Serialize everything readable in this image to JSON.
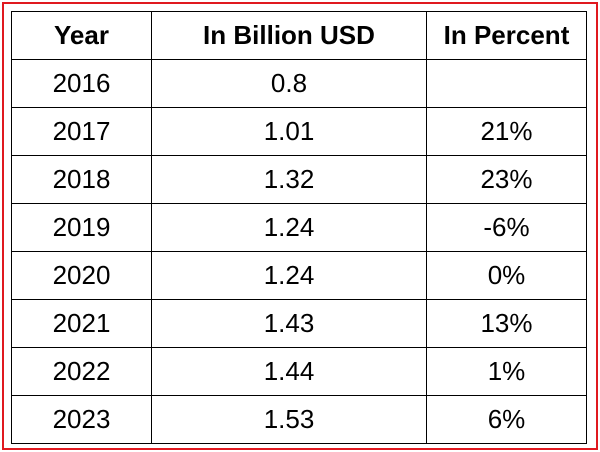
{
  "chart_data": {
    "type": "table",
    "columns": [
      "Year",
      "In Billion USD",
      "In Percent"
    ],
    "rows": [
      {
        "year": "2016",
        "usd": "0.8",
        "pct": ""
      },
      {
        "year": "2017",
        "usd": "1.01",
        "pct": "21%"
      },
      {
        "year": "2018",
        "usd": "1.32",
        "pct": "23%"
      },
      {
        "year": "2019",
        "usd": "1.24",
        "pct": "-6%"
      },
      {
        "year": "2020",
        "usd": "1.24",
        "pct": "0%"
      },
      {
        "year": "2021",
        "usd": "1.43",
        "pct": "13%"
      },
      {
        "year": "2022",
        "usd": "1.44",
        "pct": "1%"
      },
      {
        "year": "2023",
        "usd": "1.53",
        "pct": "6%"
      }
    ]
  },
  "colors": {
    "frame_border": "#e0191f",
    "grid_lines": "#000000",
    "background": "#ffffff"
  }
}
